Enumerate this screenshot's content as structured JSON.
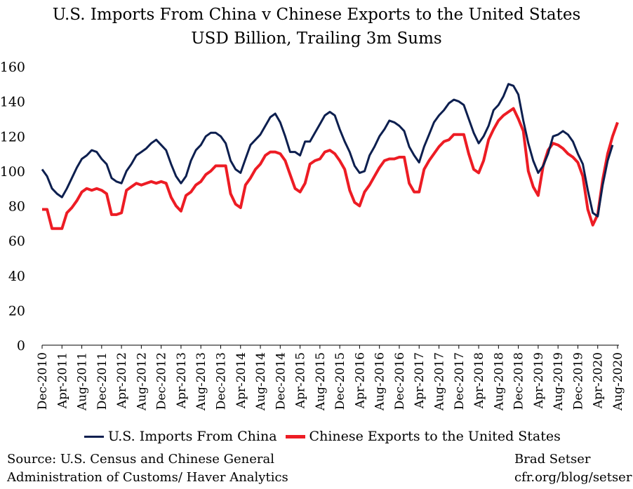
{
  "chart_data": {
    "type": "line",
    "title": "U.S. Imports From China v Chinese Exports to the United States",
    "subtitle": "USD Billion, Trailing 3m Sums",
    "xlabel": "",
    "ylabel": "",
    "ylim": [
      0,
      160
    ],
    "yticks": [
      0,
      20,
      40,
      60,
      80,
      100,
      120,
      140,
      160
    ],
    "grid": false,
    "legend_position": "bottom",
    "x_tick_labels": [
      "Dec-2010",
      "Apr-2011",
      "Aug-2011",
      "Dec-2011",
      "Apr-2012",
      "Aug-2012",
      "Dec-2012",
      "Apr-2013",
      "Aug-2013",
      "Dec-2013",
      "Apr-2014",
      "Aug-2014",
      "Dec-2014",
      "Apr-2015",
      "Aug-2015",
      "Dec-2015",
      "Apr-2016",
      "Aug-2016",
      "Dec-2016",
      "Apr-2017",
      "Aug-2017",
      "Dec-2017",
      "Apr-2018",
      "Aug-2018",
      "Dec-2018",
      "Apr-2019",
      "Aug-2019",
      "Dec-2019",
      "Apr-2020",
      "Aug-2020"
    ],
    "series": [
      {
        "name": "U.S. Imports From China",
        "color": "#0d1f4f",
        "values": [
          101,
          97,
          90,
          87,
          85,
          90,
          96,
          102,
          107,
          109,
          112,
          111,
          107,
          104,
          96,
          94,
          93,
          100,
          104,
          109,
          111,
          113,
          116,
          118,
          115,
          112,
          104,
          97,
          93,
          97,
          106,
          112,
          115,
          120,
          122,
          122,
          120,
          116,
          106,
          101,
          99,
          107,
          115,
          118,
          121,
          126,
          131,
          133,
          128,
          120,
          111,
          111,
          109,
          117,
          117,
          122,
          127,
          132,
          134,
          132,
          124,
          117,
          111,
          103,
          99,
          100,
          109,
          114,
          120,
          124,
          129,
          128,
          126,
          123,
          114,
          109,
          105,
          114,
          121,
          128,
          132,
          135,
          139,
          141,
          140,
          138,
          130,
          122,
          116,
          120,
          126,
          135,
          138,
          143,
          150,
          149,
          144,
          129,
          116,
          106,
          99,
          103,
          110,
          120,
          121,
          123,
          121,
          117,
          110,
          104,
          89,
          76,
          74,
          92,
          106,
          115
        ]
      },
      {
        "name": "Chinese Exports to the United States",
        "color": "#ed1c24",
        "values": [
          78,
          78,
          67,
          67,
          67,
          76,
          79,
          83,
          88,
          90,
          89,
          90,
          89,
          87,
          75,
          75,
          76,
          89,
          91,
          93,
          92,
          93,
          94,
          93,
          94,
          93,
          85,
          80,
          77,
          86,
          88,
          92,
          94,
          98,
          100,
          103,
          103,
          103,
          87,
          81,
          79,
          92,
          96,
          101,
          104,
          109,
          111,
          111,
          110,
          106,
          98,
          90,
          88,
          93,
          104,
          106,
          107,
          111,
          112,
          110,
          106,
          101,
          89,
          82,
          80,
          88,
          92,
          97,
          102,
          106,
          107,
          107,
          108,
          108,
          93,
          88,
          88,
          101,
          106,
          110,
          114,
          117,
          118,
          121,
          121,
          121,
          110,
          101,
          99,
          106,
          118,
          124,
          129,
          132,
          134,
          136,
          130,
          123,
          100,
          91,
          86,
          103,
          112,
          116,
          115,
          113,
          110,
          108,
          105,
          97,
          78,
          69,
          75,
          95,
          110,
          120,
          128
        ]
      }
    ]
  },
  "legend": {
    "item1": "U.S. Imports From China",
    "item2": "Chinese Exports to the United States"
  },
  "footer": {
    "source_line1": "Source: U.S. Census and Chinese General",
    "source_line2": "Administration of Customs/ Haver Analytics",
    "byline1": "Brad Setser",
    "byline2": "cfr.org/blog/setser"
  }
}
